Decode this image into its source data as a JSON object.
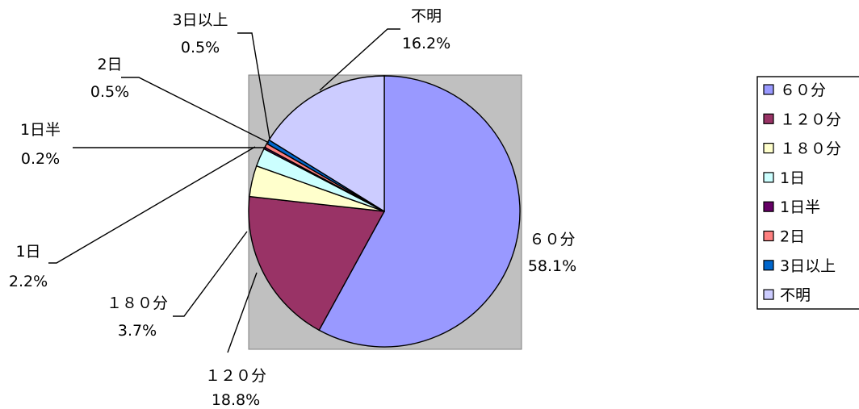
{
  "chart_data": {
    "type": "pie",
    "title": "",
    "slices": [
      {
        "name": "６０分",
        "label": "６０分",
        "value": 58.1,
        "value_label": "58.1%",
        "color": "#9999ff"
      },
      {
        "name": "１２０分",
        "label": "１２０分",
        "value": 18.8,
        "value_label": "18.8%",
        "color": "#993366"
      },
      {
        "name": "１８０分",
        "label": "１８０分",
        "value": 3.7,
        "value_label": "3.7%",
        "color": "#ffffcc"
      },
      {
        "name": "1日",
        "label": "1日",
        "value": 2.2,
        "value_label": "2.2%",
        "color": "#ccffff"
      },
      {
        "name": "1日半",
        "label": "1日半",
        "value": 0.2,
        "value_label": "0.2%",
        "color": "#660066"
      },
      {
        "name": "2日",
        "label": "2日",
        "value": 0.5,
        "value_label": "0.5%",
        "color": "#ff8080"
      },
      {
        "name": "3日以上",
        "label": "3日以上",
        "value": 0.5,
        "value_label": "0.5%",
        "color": "#0066cc"
      },
      {
        "name": "不明",
        "label": "不明",
        "value": 16.2,
        "value_label": "16.2%",
        "color": "#ccccff"
      }
    ],
    "plot_area_color": "#c0c0c0",
    "start_angle_deg": 0,
    "direction": "clockwise",
    "legend": {
      "placement": "right",
      "items": [
        "６０分",
        "１２０分",
        "１８０分",
        "1日",
        "1日半",
        "2日",
        "3日以上",
        "不明"
      ]
    }
  }
}
